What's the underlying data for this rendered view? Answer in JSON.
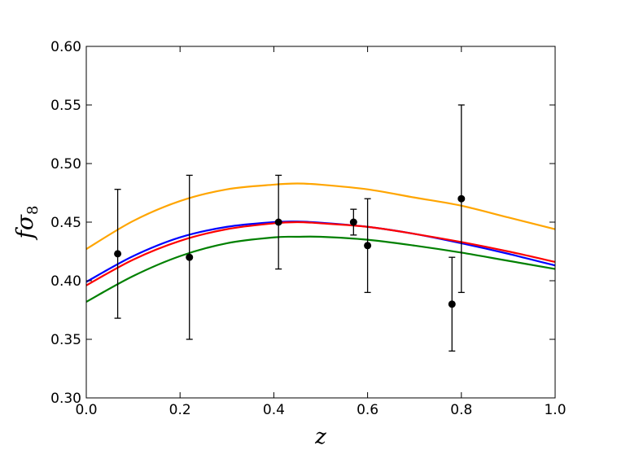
{
  "chart_data": {
    "type": "line",
    "title": "",
    "xlabel": "z",
    "ylabel": "fσ",
    "ylabel_subscript": "8",
    "xlim": [
      0.0,
      1.0
    ],
    "ylim": [
      0.3,
      0.6
    ],
    "x_ticks": [
      "0.0",
      "0.2",
      "0.4",
      "0.6",
      "0.8",
      "1.0"
    ],
    "y_ticks": [
      "0.30",
      "0.35",
      "0.40",
      "0.45",
      "0.50",
      "0.55",
      "0.60"
    ],
    "grid": false,
    "legend": "none",
    "x": [
      0.0,
      0.1,
      0.2,
      0.3,
      0.4,
      0.45,
      0.5,
      0.6,
      0.7,
      0.8,
      0.9,
      1.0
    ],
    "series": [
      {
        "color": "#FFA500",
        "values": [
          0.427,
          0.451,
          0.468,
          0.478,
          0.482,
          0.483,
          0.482,
          0.478,
          0.471,
          0.464,
          0.454,
          0.444
        ]
      },
      {
        "color": "#0000FF",
        "values": [
          0.399,
          0.421,
          0.437,
          0.446,
          0.45,
          0.4505,
          0.4495,
          0.446,
          0.44,
          0.432,
          0.423,
          0.413
        ]
      },
      {
        "color": "#FF0000",
        "values": [
          0.396,
          0.418,
          0.434,
          0.444,
          0.449,
          0.45,
          0.449,
          0.446,
          0.44,
          0.433,
          0.425,
          0.416
        ]
      },
      {
        "color": "#008000",
        "values": [
          0.382,
          0.404,
          0.421,
          0.432,
          0.437,
          0.4375,
          0.4375,
          0.435,
          0.43,
          0.424,
          0.417,
          0.41
        ]
      }
    ],
    "error_points": [
      {
        "x": 0.067,
        "y": 0.423,
        "err": 0.055
      },
      {
        "x": 0.22,
        "y": 0.42,
        "err": 0.07
      },
      {
        "x": 0.41,
        "y": 0.45,
        "err": 0.04
      },
      {
        "x": 0.57,
        "y": 0.45,
        "err": 0.011
      },
      {
        "x": 0.6,
        "y": 0.43,
        "err": 0.04
      },
      {
        "x": 0.78,
        "y": 0.38,
        "err": 0.04
      },
      {
        "x": 0.8,
        "y": 0.47,
        "err": 0.08
      }
    ]
  }
}
